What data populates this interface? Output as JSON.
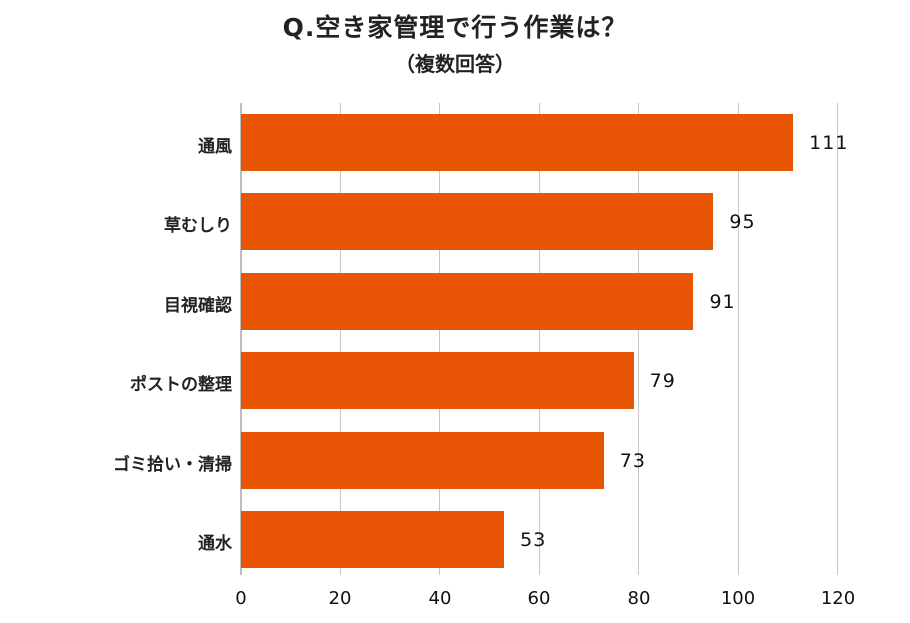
{
  "chart_data": {
    "type": "bar",
    "orientation": "horizontal",
    "title": "Q.空き家管理で行う作業は？",
    "subtitle": "（複数回答）",
    "categories": [
      "通風",
      "草むしり",
      "目視確認",
      "ポストの整理",
      "ゴミ拾い・清掃",
      "通水"
    ],
    "values": [
      111,
      95,
      91,
      79,
      73,
      53
    ],
    "value_labels": [
      "111",
      "95",
      "91",
      "79",
      "73",
      "53"
    ],
    "xlabel": "",
    "ylabel": "",
    "xlim": [
      0,
      120
    ],
    "x_ticks": [
      "0",
      "20",
      "40",
      "60",
      "80",
      "100",
      "120"
    ],
    "grid": true,
    "legend": null,
    "bar_color": "#E85505"
  }
}
